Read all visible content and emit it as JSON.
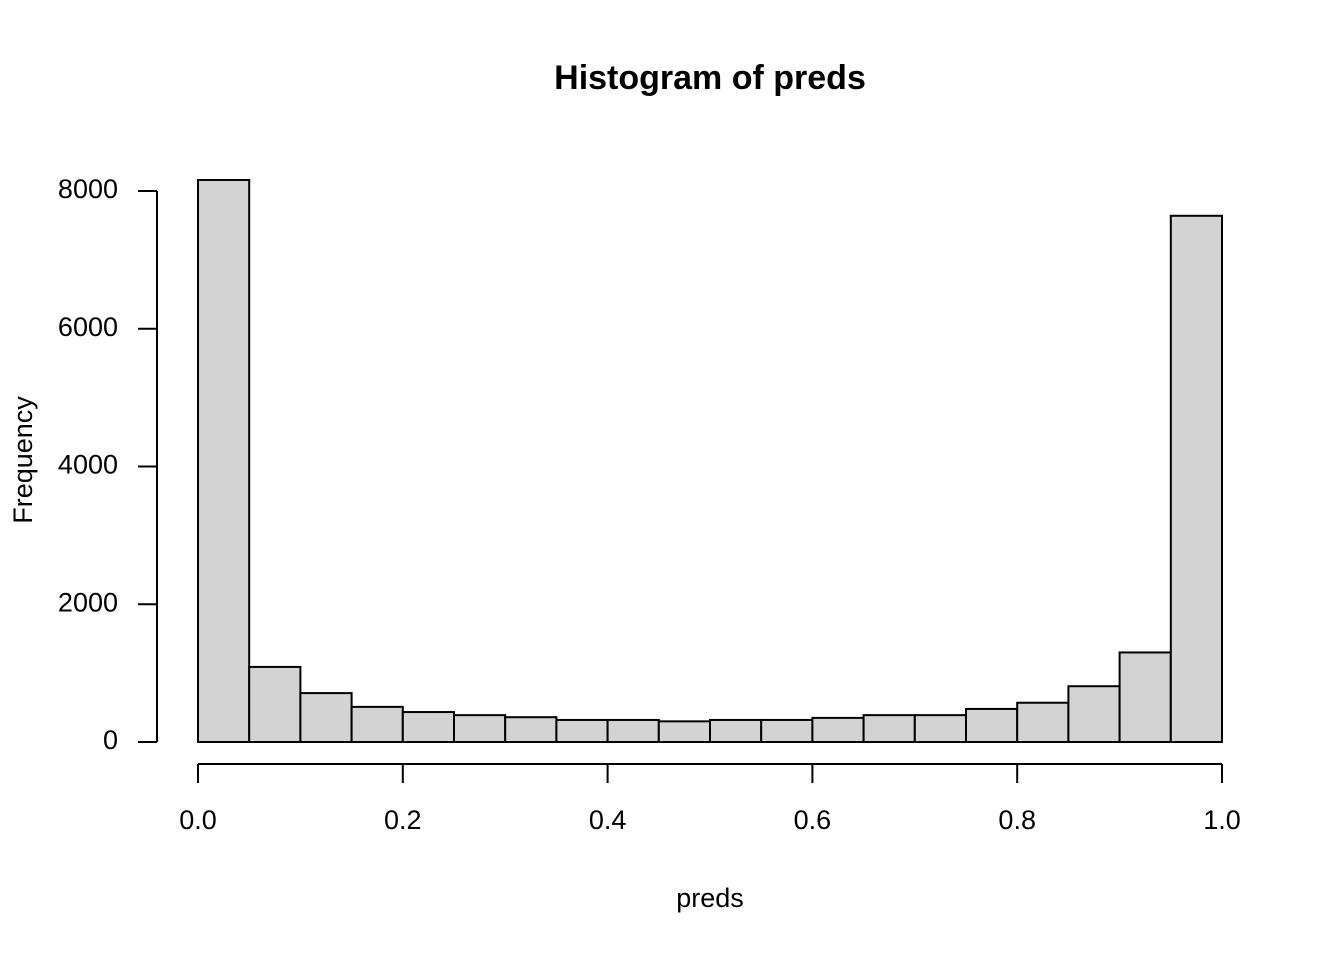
{
  "chart_data": {
    "type": "histogram",
    "title": "Histogram of preds",
    "x_label": "preds",
    "y_label": "Frequency",
    "bins": [
      0,
      0.05,
      0.1,
      0.15,
      0.2,
      0.25,
      0.3,
      0.35,
      0.4,
      0.45,
      0.5,
      0.55,
      0.6,
      0.65,
      0.7,
      0.75,
      0.8,
      0.85,
      0.9,
      0.95,
      1
    ],
    "values": [
      8160,
      1090,
      710,
      510,
      435,
      390,
      360,
      320,
      320,
      300,
      320,
      320,
      350,
      390,
      390,
      480,
      570,
      810,
      1300,
      7640
    ],
    "color": "#d3d3d3",
    "xlim": [
      0,
      1
    ],
    "ylim": [
      0,
      8000
    ],
    "xticks": [
      {
        "value": 0,
        "label": "0.0"
      },
      0.2,
      0.4,
      0.6,
      0.8,
      {
        "value": 1,
        "label": "1.0"
      }
    ],
    "yticks": [
      0,
      2000,
      4000,
      6000,
      8000
    ]
  }
}
